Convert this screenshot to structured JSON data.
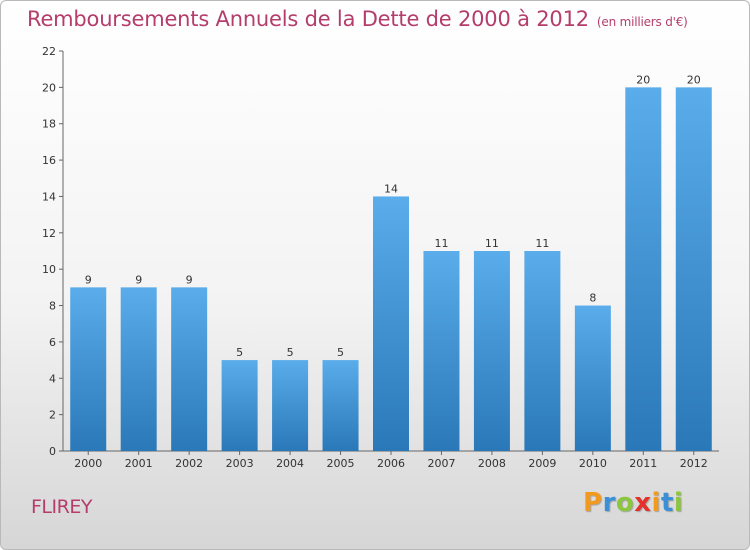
{
  "chart_data": {
    "type": "bar",
    "title": "Remboursements Annuels de la Dette de 2000 à 2012",
    "subtitle": "(en milliers d'€)",
    "categories": [
      "2000",
      "2001",
      "2002",
      "2003",
      "2004",
      "2005",
      "2006",
      "2007",
      "2008",
      "2009",
      "2010",
      "2011",
      "2012"
    ],
    "values": [
      9,
      9,
      9,
      5,
      5,
      5,
      14,
      11,
      11,
      11,
      8,
      20,
      20
    ],
    "ylim": [
      0,
      22
    ],
    "yticks": [
      0,
      2,
      4,
      6,
      8,
      10,
      12,
      14,
      16,
      18,
      20,
      22
    ],
    "grid": false,
    "legend": "none",
    "bar_color_top": "#5aacea",
    "bar_color_bottom": "#2a78b8"
  },
  "place_name": "FLIREY",
  "logo": {
    "text": "Proxiti",
    "letters": [
      {
        "ch": "P",
        "color": "#f39a1e"
      },
      {
        "ch": "r",
        "color": "#3a8fd6"
      },
      {
        "ch": "o",
        "color": "#8cc63f"
      },
      {
        "ch": "x",
        "color": "#e4312b"
      },
      {
        "ch": "i",
        "color": "#f39a1e"
      },
      {
        "ch": "t",
        "color": "#3a8fd6"
      },
      {
        "ch": "i",
        "color": "#8cc63f"
      }
    ]
  }
}
